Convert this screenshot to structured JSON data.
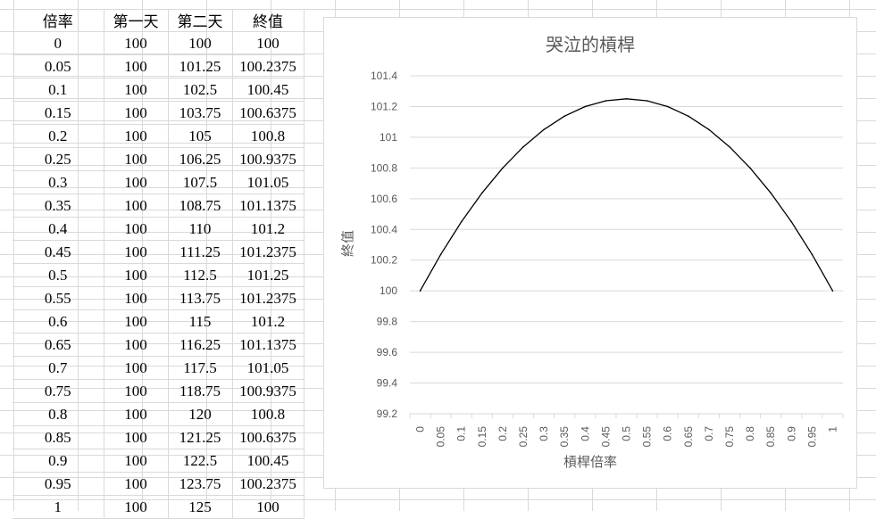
{
  "table": {
    "headers": [
      "倍率",
      "第一天",
      "第二天",
      "終值"
    ],
    "rows": [
      [
        "0",
        "100",
        "100",
        "100"
      ],
      [
        "0.05",
        "100",
        "101.25",
        "100.2375"
      ],
      [
        "0.1",
        "100",
        "102.5",
        "100.45"
      ],
      [
        "0.15",
        "100",
        "103.75",
        "100.6375"
      ],
      [
        "0.2",
        "100",
        "105",
        "100.8"
      ],
      [
        "0.25",
        "100",
        "106.25",
        "100.9375"
      ],
      [
        "0.3",
        "100",
        "107.5",
        "101.05"
      ],
      [
        "0.35",
        "100",
        "108.75",
        "101.1375"
      ],
      [
        "0.4",
        "100",
        "110",
        "101.2"
      ],
      [
        "0.45",
        "100",
        "111.25",
        "101.2375"
      ],
      [
        "0.5",
        "100",
        "112.5",
        "101.25"
      ],
      [
        "0.55",
        "100",
        "113.75",
        "101.2375"
      ],
      [
        "0.6",
        "100",
        "115",
        "101.2"
      ],
      [
        "0.65",
        "100",
        "116.25",
        "101.1375"
      ],
      [
        "0.7",
        "100",
        "117.5",
        "101.05"
      ],
      [
        "0.75",
        "100",
        "118.75",
        "100.9375"
      ],
      [
        "0.8",
        "100",
        "120",
        "100.8"
      ],
      [
        "0.85",
        "100",
        "121.25",
        "100.6375"
      ],
      [
        "0.9",
        "100",
        "122.5",
        "100.45"
      ],
      [
        "0.95",
        "100",
        "123.75",
        "100.2375"
      ],
      [
        "1",
        "100",
        "125",
        "100"
      ]
    ]
  },
  "chart_data": {
    "type": "line",
    "title": "哭泣的槓桿",
    "xlabel": "槓桿倍率",
    "ylabel": "終值",
    "categories": [
      "0",
      "0.05",
      "0.1",
      "0.15",
      "0.2",
      "0.25",
      "0.3",
      "0.35",
      "0.4",
      "0.45",
      "0.5",
      "0.55",
      "0.6",
      "0.65",
      "0.7",
      "0.75",
      "0.8",
      "0.85",
      "0.9",
      "0.95",
      "1"
    ],
    "series": [
      {
        "values": [
          100,
          100.2375,
          100.45,
          100.6375,
          100.8,
          100.9375,
          101.05,
          101.1375,
          101.2,
          101.2375,
          101.25,
          101.2375,
          101.2,
          101.1375,
          101.05,
          100.9375,
          100.8,
          100.6375,
          100.45,
          100.2375,
          100
        ]
      }
    ],
    "ylim": [
      99.2,
      101.4
    ],
    "yticks": [
      "99.2",
      "99.4",
      "99.6",
      "99.8",
      "100",
      "100.2",
      "100.4",
      "100.6",
      "100.8",
      "101",
      "101.2",
      "101.4"
    ],
    "grid": true,
    "legend": "none",
    "line_color": "#000000",
    "grid_color": "#d9d9d9"
  }
}
